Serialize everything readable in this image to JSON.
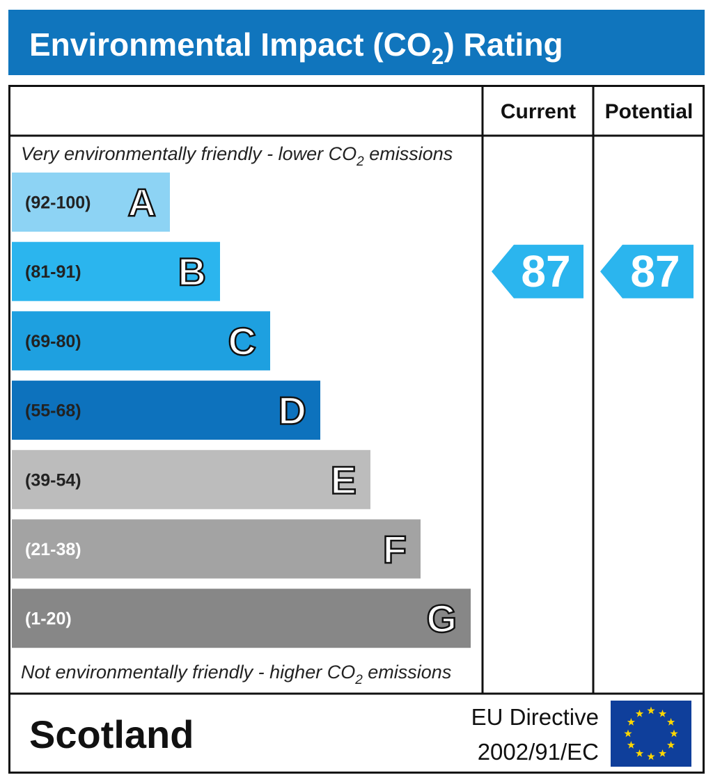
{
  "header": {
    "title": [
      "Environmental Impact (CO",
      "2",
      ") Rating"
    ]
  },
  "columns": [
    "Current",
    "Potential"
  ],
  "top_note": [
    "Very environmentally friendly - lower CO",
    "2",
    " emissions"
  ],
  "bands": [
    {
      "range": "(92-100)",
      "letter": "A",
      "color": "#8dd3f4"
    },
    {
      "range": "(81-91)",
      "letter": "B",
      "color": "#2bb5ee"
    },
    {
      "range": "(69-80)",
      "letter": "C",
      "color": "#1ea0e0"
    },
    {
      "range": "(55-68)",
      "letter": "D",
      "color": "#0d72bd"
    },
    {
      "range": "(39-54)",
      "letter": "E",
      "color": "#bcbcbc"
    },
    {
      "range": "(21-38)",
      "letter": "F",
      "color": "#a3a3a3"
    },
    {
      "range": "(1-20)",
      "letter": "G",
      "color": "#878787"
    }
  ],
  "bottom_note": [
    "Not environmentally friendly - higher CO",
    "2",
    " emissions"
  ],
  "ratings": {
    "current": 87,
    "potential": 87
  },
  "footer": {
    "region": "Scotland",
    "directive": [
      "EU Directive",
      "2002/91/EC"
    ]
  }
}
